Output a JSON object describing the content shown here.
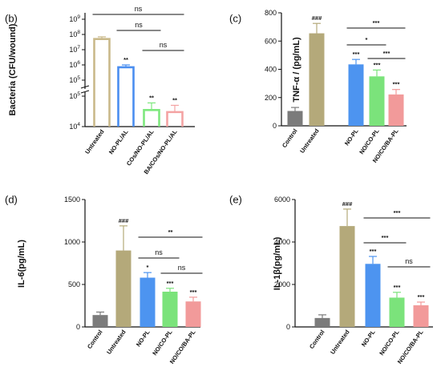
{
  "chart_data": [
    {
      "panel": "(b)",
      "type": "bar",
      "style": "hollow",
      "yscale": "log-broken",
      "ylabel": "Bacteria (CFU/wound)",
      "yticks": [
        "10^4",
        "10^5",
        "10^5",
        "10^6",
        "10^7",
        "10^8",
        "10^9"
      ],
      "categories": [
        "Untreated",
        "NO-PL/AL",
        "COs/NO-PL/AL",
        "BA/COs/NO-PL/AL"
      ],
      "values": [
        50000000,
        700000,
        35000,
        30000
      ],
      "errors_hi": [
        70000000,
        1000000,
        60000,
        50000
      ],
      "colors": [
        "#c9b98a",
        "#4a8ef0",
        "#7ee87e",
        "#f4a3a3"
      ],
      "bar_labels": [
        "",
        "**",
        "**",
        "**"
      ],
      "comparisons": [
        {
          "from": 0,
          "to": 3,
          "label": "ns"
        },
        {
          "from": 1,
          "to": 2,
          "label": "ns"
        },
        {
          "from": 2,
          "to": 3,
          "label": "ns"
        }
      ]
    },
    {
      "panel": "(c)",
      "type": "bar",
      "ylabel": "TNF-α / (pg/mL)",
      "ylim": [
        0,
        800
      ],
      "yticks": [
        "0",
        "200",
        "400",
        "600",
        "800"
      ],
      "categories": [
        "Control",
        "Untreated",
        "NO-PL",
        "NO/CO-PL",
        "NO/CO/BA-PL"
      ],
      "values": [
        105,
        655,
        435,
        350,
        222
      ],
      "errors": [
        25,
        70,
        35,
        45,
        35
      ],
      "colors": [
        "#7b7b7b",
        "#b4a97a",
        "#4d94f0",
        "#7be37b",
        "#f29a9a"
      ],
      "bar_labels": [
        "",
        "###",
        "***",
        "***",
        "***"
      ],
      "comparisons": [
        {
          "from": 2,
          "to": 4,
          "label": "***"
        },
        {
          "from": 2,
          "to": 3,
          "label": "*"
        },
        {
          "from": 3,
          "to": 4,
          "label": "***"
        }
      ]
    },
    {
      "panel": "(d)",
      "type": "bar",
      "ylabel": "IL-6(pg/mL)",
      "ylim": [
        0,
        1500
      ],
      "yticks": [
        "0",
        "500",
        "1000",
        "1500"
      ],
      "categories": [
        "Control",
        "Untreated",
        "NO-PL",
        "NO/CO-PL",
        "NO/CO/BA-PL"
      ],
      "values": [
        140,
        900,
        580,
        415,
        300
      ],
      "errors": [
        35,
        290,
        60,
        40,
        50
      ],
      "colors": [
        "#7b7b7b",
        "#b4a97a",
        "#4d94f0",
        "#7be37b",
        "#f29a9a"
      ],
      "bar_labels": [
        "",
        "###",
        "*",
        "***",
        "***"
      ],
      "comparisons": [
        {
          "from": 2,
          "to": 4,
          "label": "**"
        },
        {
          "from": 2,
          "to": 3,
          "label": "ns"
        },
        {
          "from": 3,
          "to": 4,
          "label": "ns"
        }
      ]
    },
    {
      "panel": "(e)",
      "type": "bar",
      "ylabel": "IL-1β(pg/mL)",
      "ylim": [
        0,
        6000
      ],
      "yticks": [
        "0",
        "2000",
        "4000",
        "6000"
      ],
      "categories": [
        "Control",
        "Untreated",
        "NO-PL",
        "NO/CO-PL",
        "NO/CO/BA-PL"
      ],
      "values": [
        420,
        4750,
        2970,
        1380,
        1020
      ],
      "errors": [
        150,
        800,
        350,
        250,
        150
      ],
      "colors": [
        "#7b7b7b",
        "#b4a97a",
        "#4d94f0",
        "#7be37b",
        "#f29a9a"
      ],
      "bar_labels": [
        "",
        "###",
        "***",
        "***",
        "***"
      ],
      "comparisons": [
        {
          "from": 2,
          "to": 4,
          "label": "***"
        },
        {
          "from": 2,
          "to": 3,
          "label": "***"
        },
        {
          "from": 3,
          "to": 4,
          "label": "ns"
        }
      ]
    }
  ]
}
